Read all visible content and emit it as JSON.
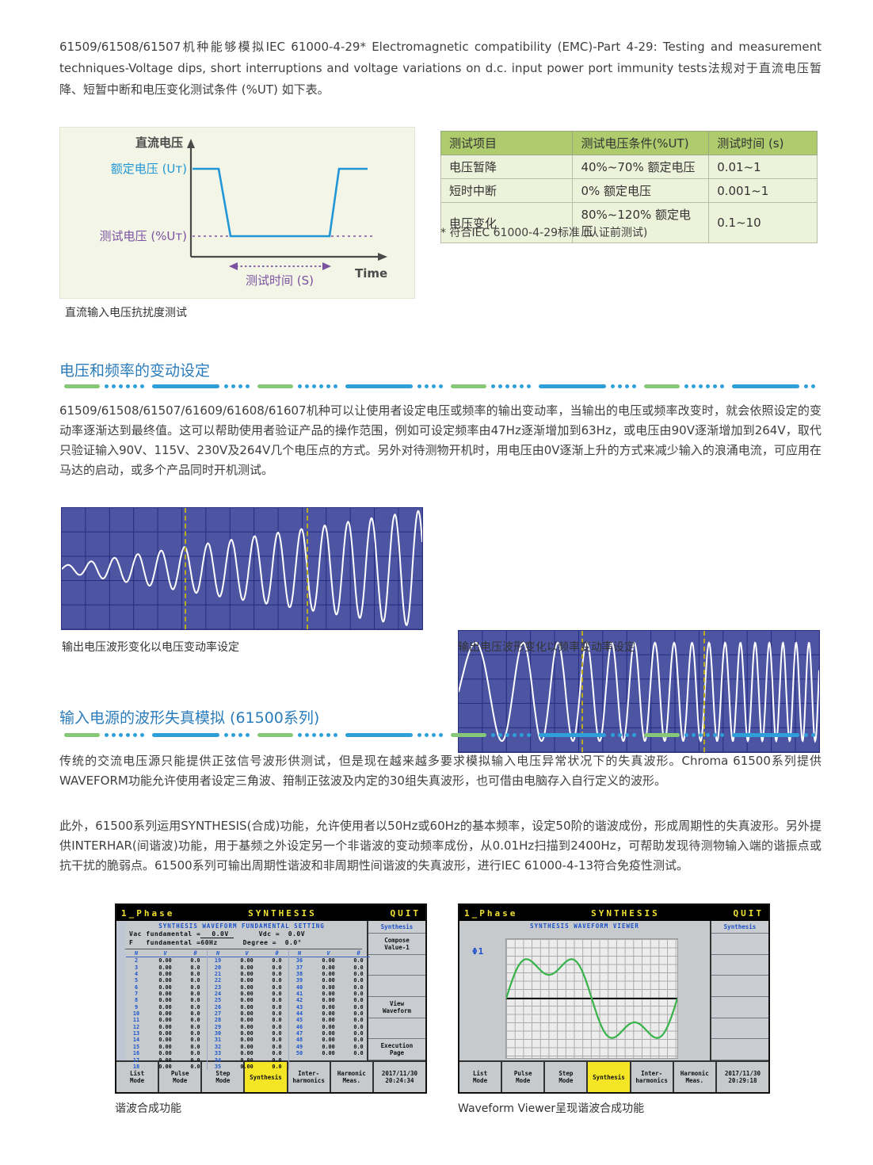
{
  "intro": "61509/61508/61507机种能够模拟IEC 61000-4-29* Electromagnetic compatibility (EMC)-Part 4-29: Testing and measurement techniques-Voltage dips, short interruptions and voltage variations on d.c. input power port immunity tests法规对于直流电压暂降、短暂中断和电压变化测试条件 (%UT) 如下表。",
  "dip_diagram": {
    "y_axis_label": "直流电压",
    "rated_label": "额定电压 (Uт)",
    "test_label": "测试电压 (%Uт)",
    "time_axis_label": "Time",
    "duration_label": "测试时间 (S)",
    "caption": "直流输入电压抗扰度测试"
  },
  "test_table": {
    "headers": [
      "测试项目",
      "测试电压条件(%UT)",
      "测试时间 (s)"
    ],
    "rows": [
      [
        "电压暂降",
        "40%~70% 额定电压",
        "0.01~1"
      ],
      [
        "短时中断",
        "0% 额定电压",
        "0.001~1"
      ],
      [
        "电压变化",
        "80%~120% 额定电压",
        "0.1~10"
      ]
    ],
    "footnote": "* 符合IEC 61000-4-29标准 (认证前测试)"
  },
  "section1": {
    "title": "电压和频率的变动设定",
    "body": "61509/61508/61507/61609/61608/61607机种可以让使用者设定电压或频率的输出变动率，当输出的电压或频率改变时，就会依照设定的变动率逐渐达到最终值。这可以帮助使用者验证产品的操作范围，例如可设定频率由47Hz逐渐增加到63Hz，或电压由90V逐渐增加到264V，取代只验证输入90V、115V、230V及264V几个电压点的方式。另外对待测物开机时，用电压由0V逐渐上升的方式来减少输入的浪涌电流，可应用在马达的启动，或多个产品同时开机测试。",
    "fig1_caption": "输出电压波形变化以电压变动率设定",
    "fig2_caption": "输出电压波形变化以频率变动率设定"
  },
  "section2": {
    "title": "输入电源的波形失真模拟 (61500系列)",
    "body1": "传统的交流电压源只能提供正弦信号波形供测试，但是现在越来越多要求模拟输入电压异常状况下的失真波形。Chroma 61500系列提供WAVEFORM功能允许使用者设定三角波、箝制正弦波及内定的30组失真波形，也可借由电脑存入自行定义的波形。",
    "body2": "此外，61500系列运用SYNTHESIS(合成)功能，允许使用者以50Hz或60Hz的基本频率，设定50阶的谐波成份，形成周期性的失真波形。另外提供INTERHAR(间谐波)功能，用于基频之外设定另一个非谐波的变动频率成份，从0.01Hz扫描到2400Hz，可帮助发现待测物输入端的谐振点或抗干扰的脆弱点。61500系列可输出周期性谐波和非周期性间谐波的失真波形，进行IEC 61000-4-13符合免疫性测试。",
    "fig1_caption": "谐波合成功能",
    "fig2_caption": "Waveform Viewer呈现谐波合成功能"
  },
  "synth_screen": {
    "phase": "1_Phase",
    "title": "SYNTHESIS",
    "quit": "QUIT",
    "subtitle": "SYNTHESIS WAVEFORM FUNDAMENTAL SETTING",
    "settings": {
      "vac_label": "Vac fundamental =",
      "vac_value": "0.0V",
      "vdc_label": "Vdc =",
      "vdc_value": "0.0V",
      "f_label": "F   fundamental =60Hz",
      "degree_label": "Degree =",
      "degree_value": "0.0°"
    },
    "col_headers": [
      "N",
      "V",
      "θ"
    ],
    "n_groups": [
      [
        2,
        18
      ],
      [
        19,
        35
      ],
      [
        36,
        50
      ]
    ],
    "v_value": "0.00",
    "theta_value": "0.0",
    "panel_header": "Synthesis",
    "side_buttons": [
      "Compose\nValue-1",
      "",
      "",
      "View\nWaveform",
      "",
      "Execution\nPage"
    ],
    "bottom_buttons": [
      "List\nMode",
      "Pulse\nMode",
      "Step\nMode",
      "Synthesis",
      "Inter-\nharmonics",
      "Harmonic\nMeas."
    ],
    "active_mode": "Synthesis",
    "timestamp": "2017/11/30\n20:24:34"
  },
  "viewer_screen": {
    "phase": "1_Phase",
    "title": "SYNTHESIS",
    "quit": "QUIT",
    "subtitle": "SYNTHESIS WAVEFORM VIEWER",
    "phase_label": "Φ1",
    "panel_header": "Synthesis",
    "side_buttons": [
      "",
      "",
      "",
      "",
      "",
      ""
    ],
    "bottom_buttons": [
      "List\nMode",
      "Pulse\nMode",
      "Step\nMode",
      "Synthesis",
      "Inter-\nharmonics",
      "Harmonic\nMeas."
    ],
    "active_mode": "Synthesis",
    "timestamp": "2017/11/30\n20:29:18"
  },
  "colors": {
    "accent_blue": "#2b7cba",
    "divider_blue": "#2e9fd9",
    "divider_green": "#86c878",
    "table_header_green": "#aecb6d",
    "table_row_green": "#edf2da",
    "scope_bg": "#4d55a3",
    "active_button_yellow": "#f5e625",
    "wave_green": "#37b34a",
    "diagram_blue": "#2196d6",
    "diagram_purple": "#7b52a1"
  }
}
